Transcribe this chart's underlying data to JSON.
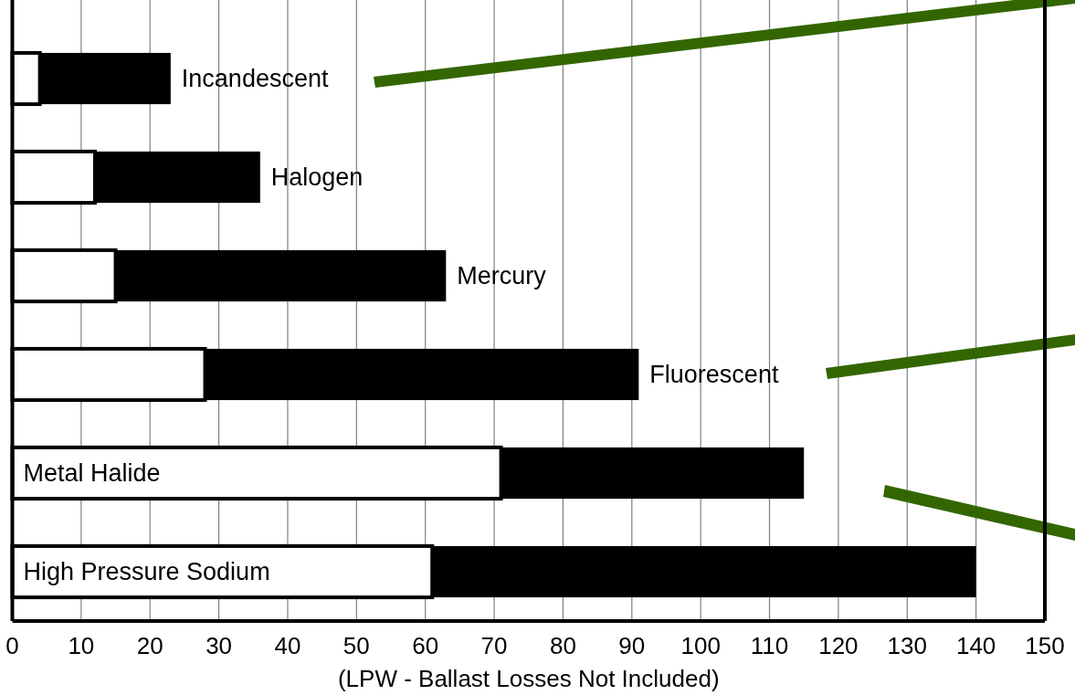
{
  "chart_data": {
    "type": "bar",
    "orientation": "horizontal",
    "stacked": true,
    "categories": [
      "Incandescent",
      "Halogen",
      "Mercury",
      "Fluorescent",
      "Metal Halide",
      "High Pressure Sodium"
    ],
    "series": [
      {
        "color": "#ffffff",
        "values": [
          4,
          12,
          15,
          28,
          71,
          61
        ]
      },
      {
        "color": "#000000",
        "values": [
          19,
          24,
          48,
          63,
          44,
          79
        ]
      }
    ],
    "xlabel": "(LPW - Ballast Losses Not Included)",
    "xlim": [
      0,
      150
    ],
    "xticks": [
      0,
      10,
      20,
      30,
      40,
      50,
      60,
      70,
      80,
      90,
      100,
      110,
      120,
      130,
      140,
      150
    ],
    "grid": "x"
  }
}
